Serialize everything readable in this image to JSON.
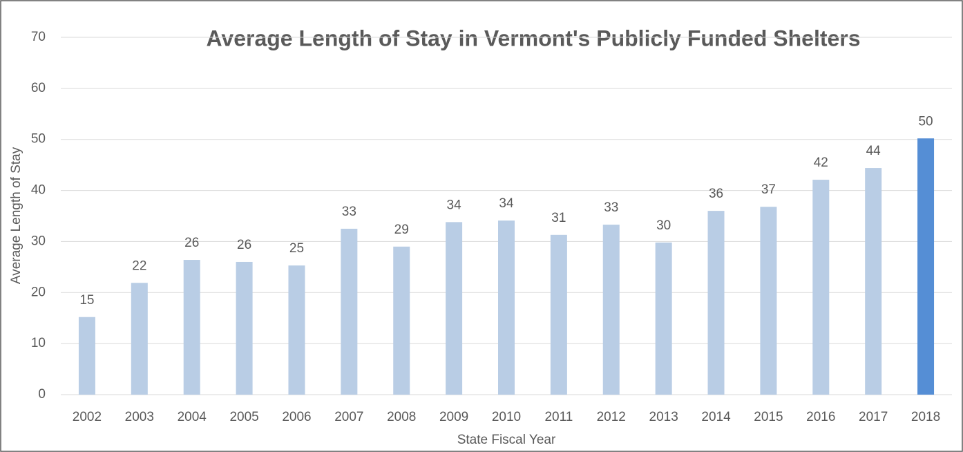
{
  "chart_data": {
    "type": "bar",
    "title": "Average Length of Stay in Vermont's Publicly Funded Shelters",
    "x_label": "State Fiscal Year",
    "y_label": "Average Length of Stay",
    "categories": [
      "2002",
      "2003",
      "2004",
      "2005",
      "2006",
      "2007",
      "2008",
      "2009",
      "2010",
      "2011",
      "2012",
      "2013",
      "2014",
      "2015",
      "2016",
      "2017",
      "2018"
    ],
    "values": [
      15.2,
      21.9,
      26.4,
      26.0,
      25.3,
      32.5,
      29.0,
      33.8,
      34.1,
      31.3,
      33.3,
      29.8,
      36.0,
      36.8,
      42.1,
      44.4,
      50.2
    ],
    "value_labels": [
      "15",
      "22",
      "26",
      "26",
      "25",
      "33",
      "29",
      "34",
      "34",
      "31",
      "33",
      "30",
      "36",
      "37",
      "42",
      "44",
      "50"
    ],
    "colors": [
      "#b9cde5",
      "#b9cde5",
      "#b9cde5",
      "#b9cde5",
      "#b9cde5",
      "#b9cde5",
      "#b9cde5",
      "#b9cde5",
      "#b9cde5",
      "#b9cde5",
      "#b9cde5",
      "#b9cde5",
      "#b9cde5",
      "#b9cde5",
      "#b9cde5",
      "#b9cde5",
      "#558ed5"
    ],
    "ylim": [
      0,
      70
    ],
    "yticks": [
      0,
      10,
      20,
      30,
      40,
      50,
      60,
      70
    ],
    "grid": true
  }
}
